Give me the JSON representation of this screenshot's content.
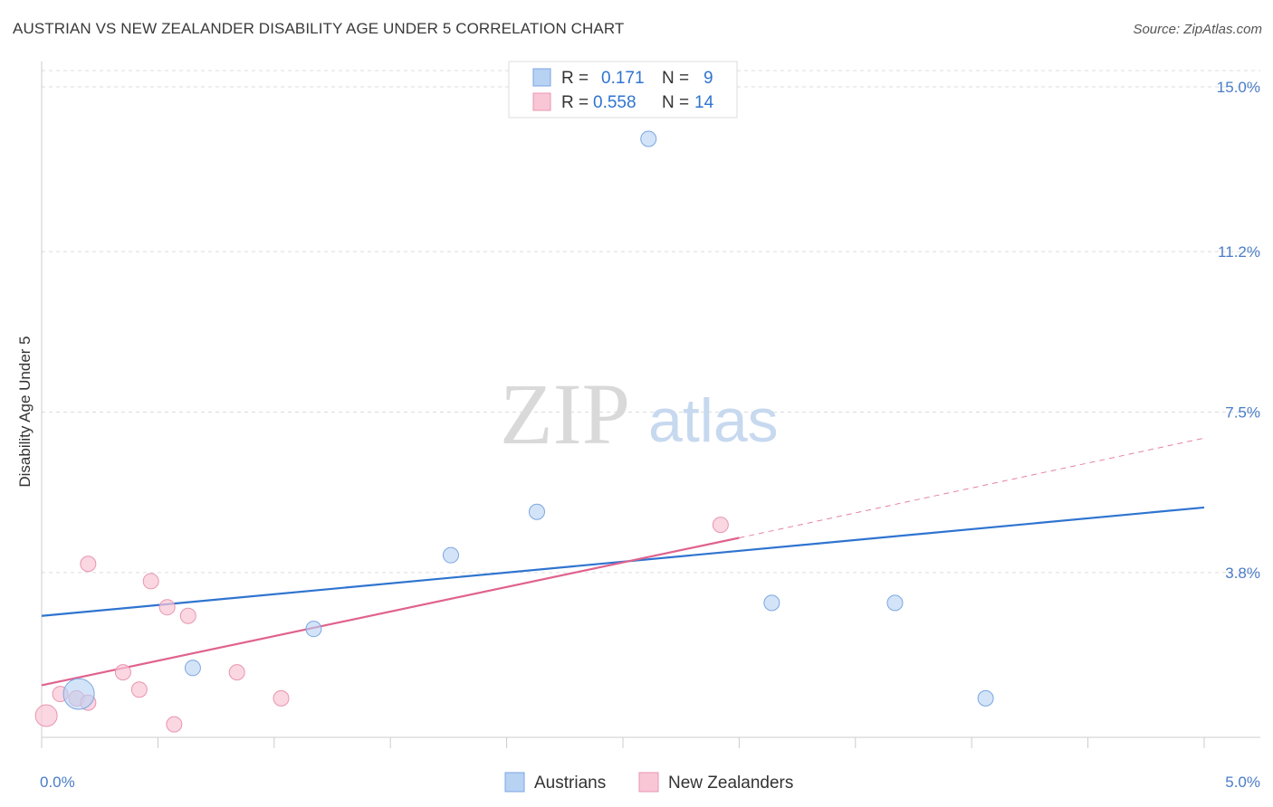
{
  "header": {
    "title": "AUSTRIAN VS NEW ZEALANDER DISABILITY AGE UNDER 5 CORRELATION CHART",
    "source": "Source: ZipAtlas.com"
  },
  "watermark": {
    "part1": "ZIP",
    "part2": "atlas"
  },
  "legend_top": {
    "rows": [
      {
        "r_label": "R =",
        "r_value": "0.171",
        "n_label": "N =",
        "n_value": "9"
      },
      {
        "r_label": "R =",
        "r_value": "0.558",
        "n_label": "N =",
        "n_value": "14"
      }
    ]
  },
  "chart_data": {
    "type": "scatter",
    "title": "AUSTRIAN VS NEW ZEALANDER DISABILITY AGE UNDER 5 CORRELATION CHART",
    "xlabel": "",
    "ylabel": "Disability Age Under 5",
    "xlim": [
      0,
      5
    ],
    "ylim": [
      0,
      15.5
    ],
    "x_tick_labels": [
      "0.0%",
      "5.0%"
    ],
    "y_ticks": [
      3.8,
      7.5,
      11.2,
      15.0
    ],
    "y_tick_labels": [
      "3.8%",
      "7.5%",
      "11.2%",
      "15.0%"
    ],
    "grid": true,
    "legend_position": "top-center",
    "colors": {
      "austrians_fill": "#b8d2f4",
      "austrians_stroke": "#7aa6e0",
      "austrians_line": "#2f74d0",
      "nz_fill": "#f9c6d6",
      "nz_stroke": "#e895b1",
      "nz_line": "#e0628e",
      "value_text": "#2f74d0"
    },
    "series": [
      {
        "name": "Austrians",
        "r": 0.171,
        "n": 9,
        "points": [
          {
            "x": 0.16,
            "y": 1.0,
            "size": "large"
          },
          {
            "x": 0.65,
            "y": 1.6
          },
          {
            "x": 1.17,
            "y": 2.5
          },
          {
            "x": 1.76,
            "y": 4.2
          },
          {
            "x": 2.13,
            "y": 5.2
          },
          {
            "x": 2.61,
            "y": 13.8
          },
          {
            "x": 3.14,
            "y": 3.1
          },
          {
            "x": 3.67,
            "y": 3.1
          },
          {
            "x": 4.06,
            "y": 0.9
          }
        ],
        "trend": {
          "x": [
            0,
            5
          ],
          "y": [
            2.8,
            5.3
          ]
        }
      },
      {
        "name": "New Zealanders",
        "r": 0.558,
        "n": 14,
        "points": [
          {
            "x": 0.02,
            "y": 0.5,
            "size": "medium"
          },
          {
            "x": 0.08,
            "y": 1.0
          },
          {
            "x": 0.15,
            "y": 0.9
          },
          {
            "x": 0.2,
            "y": 0.8
          },
          {
            "x": 0.2,
            "y": 4.0
          },
          {
            "x": 0.35,
            "y": 1.5
          },
          {
            "x": 0.42,
            "y": 1.1
          },
          {
            "x": 0.47,
            "y": 3.6
          },
          {
            "x": 0.54,
            "y": 3.0
          },
          {
            "x": 0.57,
            "y": 0.3
          },
          {
            "x": 0.63,
            "y": 2.8
          },
          {
            "x": 0.84,
            "y": 1.5
          },
          {
            "x": 1.03,
            "y": 0.9
          },
          {
            "x": 2.92,
            "y": 4.9
          }
        ],
        "trend": {
          "x": [
            0,
            3.0
          ],
          "y": [
            1.2,
            4.6
          ]
        },
        "trend_extension": {
          "x": [
            3.0,
            5
          ],
          "y": [
            4.6,
            6.9
          ]
        }
      }
    ]
  }
}
